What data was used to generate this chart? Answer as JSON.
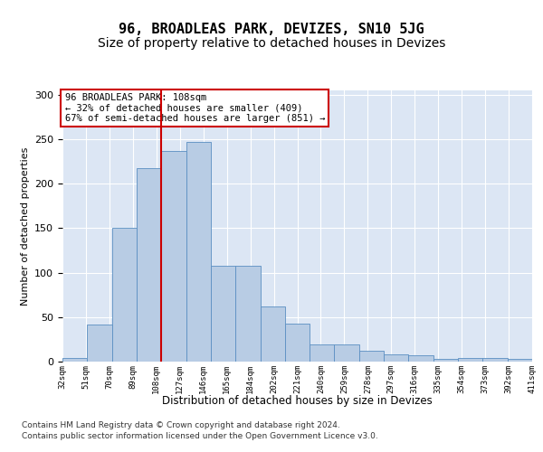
{
  "title": "96, BROADLEAS PARK, DEVIZES, SN10 5JG",
  "subtitle": "Size of property relative to detached houses in Devizes",
  "xlabel": "Distribution of detached houses by size in Devizes",
  "ylabel": "Number of detached properties",
  "tick_labels": [
    "32sqm",
    "51sqm",
    "70sqm",
    "89sqm",
    "108sqm",
    "127sqm",
    "146sqm",
    "165sqm",
    "184sqm",
    "202sqm",
    "221sqm",
    "240sqm",
    "259sqm",
    "278sqm",
    "297sqm",
    "316sqm",
    "335sqm",
    "354sqm",
    "373sqm",
    "392sqm",
    "411sqm"
  ],
  "bar_heights": [
    4,
    42,
    150,
    218,
    237,
    247,
    108,
    108,
    62,
    43,
    19,
    19,
    12,
    8,
    7,
    3,
    4,
    4,
    3
  ],
  "bar_color": "#b8cce4",
  "bar_edgecolor": "#5a8fc2",
  "vline_bin": 4,
  "vline_color": "#cc0000",
  "annotation_line1": "96 BROADLEAS PARK: 108sqm",
  "annotation_line2": "← 32% of detached houses are smaller (409)",
  "annotation_line3": "67% of semi-detached houses are larger (851) →",
  "annotation_box_edgecolor": "#cc0000",
  "footer_line1": "Contains HM Land Registry data © Crown copyright and database right 2024.",
  "footer_line2": "Contains public sector information licensed under the Open Government Licence v3.0.",
  "ylim": [
    0,
    305
  ],
  "yticks": [
    0,
    50,
    100,
    150,
    200,
    250,
    300
  ],
  "plot_background": "#dce6f4",
  "title_fontsize": 11,
  "subtitle_fontsize": 10
}
